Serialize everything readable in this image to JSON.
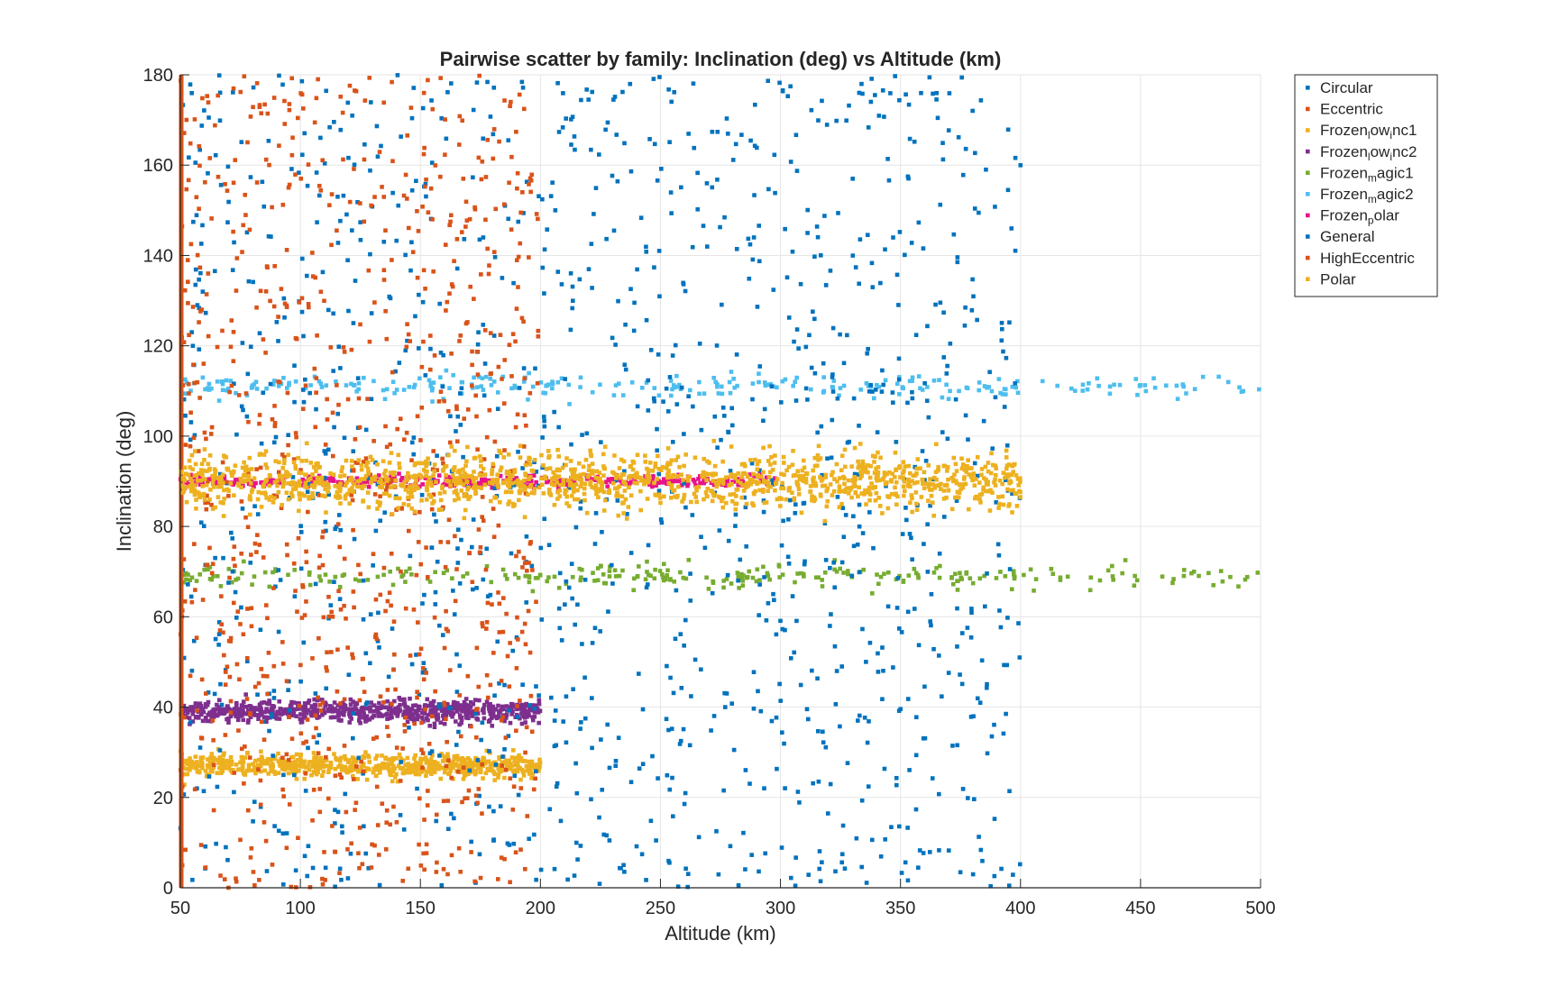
{
  "chart_data": {
    "type": "scatter",
    "title": "Pairwise scatter by family: Inclination (deg) vs Altitude (km)",
    "xlabel": "Altitude (km)",
    "ylabel": "Inclination (deg)",
    "xlim": [
      50,
      500
    ],
    "ylim": [
      0,
      180
    ],
    "xticks": [
      50,
      100,
      150,
      200,
      250,
      300,
      350,
      400,
      450,
      500
    ],
    "yticks": [
      0,
      20,
      40,
      60,
      80,
      100,
      120,
      140,
      160,
      180
    ],
    "grid": true,
    "legend_position": "outside-top-right",
    "series": [
      {
        "name": "Circular",
        "legend_label": {
          "base": "Circular",
          "sub": "",
          "rest": ""
        },
        "color": "#0072BD",
        "count": 0,
        "x_range": [
          50,
          400
        ],
        "y_range": [
          0,
          180
        ]
      },
      {
        "name": "Eccentric",
        "legend_label": {
          "base": "Eccentric",
          "sub": "",
          "rest": ""
        },
        "color": "#D95319",
        "count": 0,
        "x_range": [
          50,
          200
        ],
        "y_range": [
          0,
          180
        ]
      },
      {
        "name": "Frozen_low_inc1",
        "legend_label": {
          "base": "Frozen",
          "sub": "l",
          "rest": "ow",
          "sub2": "i",
          "rest2": "nc1"
        },
        "color": "#EDB120",
        "count": 700,
        "x_range": [
          50,
          200
        ],
        "y_center": 27,
        "y_spread": 1.2
      },
      {
        "name": "Frozen_low_inc2",
        "legend_label": {
          "base": "Frozen",
          "sub": "l",
          "rest": "ow",
          "sub2": "i",
          "rest2": "nc2"
        },
        "color": "#7E2F8E",
        "count": 700,
        "x_range": [
          50,
          200
        ],
        "y_center": 39,
        "y_spread": 1.2
      },
      {
        "name": "Frozen_magic1",
        "legend_label": {
          "base": "Frozen",
          "sub": "m",
          "rest": "agic1"
        },
        "color": "#77AC30",
        "count": 300,
        "x_range": [
          50,
          500
        ],
        "y_center": 69,
        "y_spread": 1.3
      },
      {
        "name": "Frozen_magic2",
        "legend_label": {
          "base": "Frozen",
          "sub": "m",
          "rest": "agic2"
        },
        "color": "#4DBEEE",
        "count": 300,
        "x_range": [
          50,
          500
        ],
        "y_center": 111,
        "y_spread": 1.3
      },
      {
        "name": "Frozen_polar",
        "legend_label": {
          "base": "Frozen",
          "sub": "p",
          "rest": "olar"
        },
        "color": "#E8128C",
        "count": 400,
        "x_range": [
          50,
          300
        ],
        "y_center": 90,
        "y_spread": 0.6
      },
      {
        "name": "General",
        "legend_label": {
          "base": "General",
          "sub": "",
          "rest": ""
        },
        "color": "#0072BD",
        "count": 1300,
        "x_range": [
          50,
          400
        ],
        "y_range": [
          0,
          180
        ]
      },
      {
        "name": "HighEccentric",
        "legend_label": {
          "base": "HighEccentric",
          "sub": "",
          "rest": ""
        },
        "color": "#D95319",
        "count": 900,
        "x_range": [
          50,
          200
        ],
        "y_range": [
          0,
          180
        ],
        "line_at_x": 50
      },
      {
        "name": "Polar",
        "legend_label": {
          "base": "Polar",
          "sub": "",
          "rest": ""
        },
        "color": "#EDB120",
        "count": 1400,
        "x_range": [
          50,
          400
        ],
        "y_center": 90,
        "y_spread": 3
      }
    ]
  }
}
